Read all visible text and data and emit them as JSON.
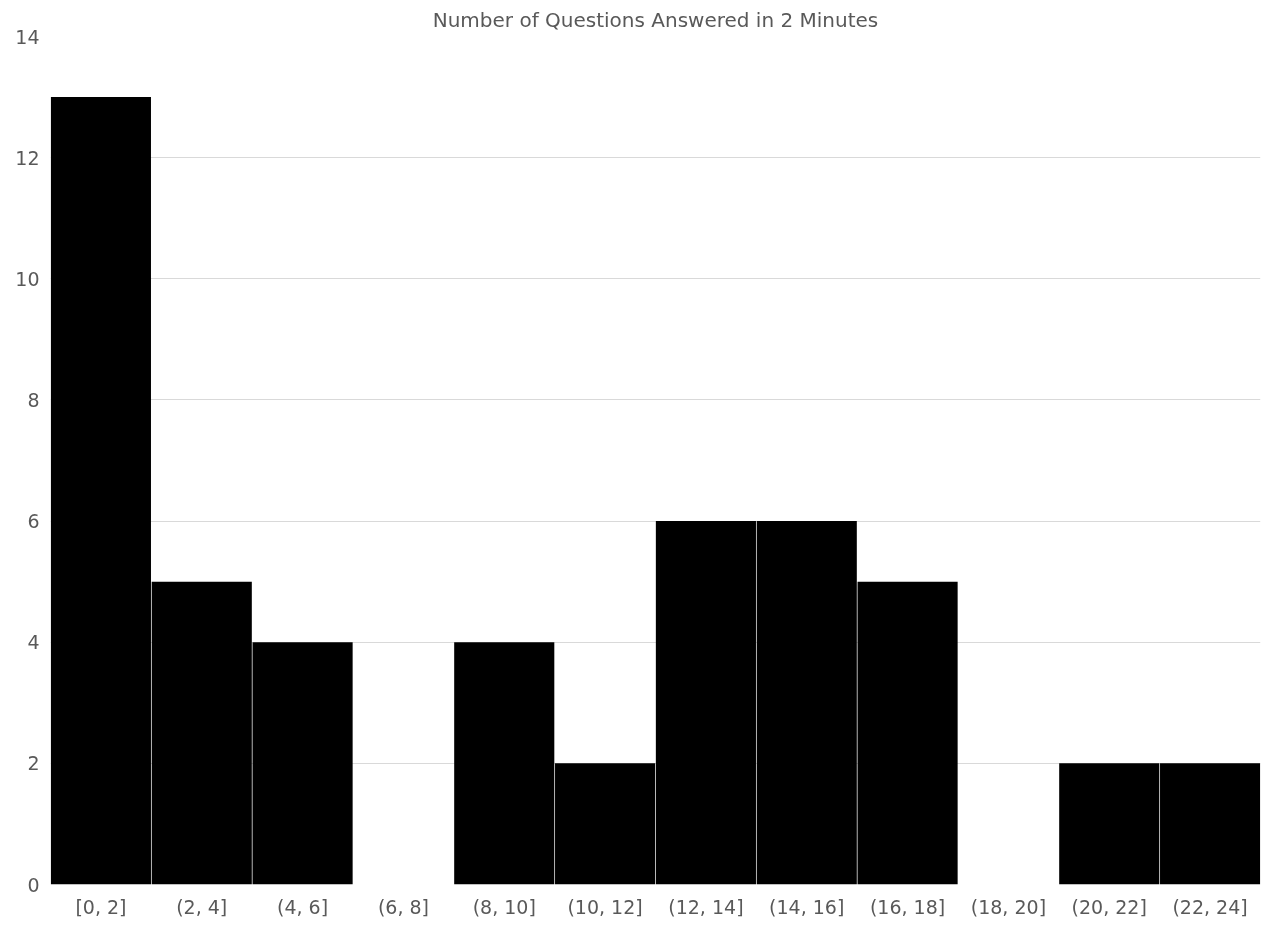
{
  "chart_data": {
    "type": "bar",
    "title": "Number of Questions Answered in 2 Minutes",
    "categories": [
      "[0, 2]",
      "(2, 4]",
      "(4, 6]",
      "(6, 8]",
      "(8, 10]",
      "(10, 12]",
      "(12, 14]",
      "(14, 16]",
      "(16, 18]",
      "(18, 20]",
      "(20, 22]",
      "(22, 24]"
    ],
    "values": [
      13,
      5,
      4,
      0,
      4,
      2,
      6,
      6,
      5,
      0,
      2,
      2
    ],
    "color": "#000000",
    "ylim": [
      0,
      14
    ],
    "yticks": [
      0,
      2,
      4,
      6,
      8,
      10,
      12,
      14
    ],
    "grid": "y"
  }
}
